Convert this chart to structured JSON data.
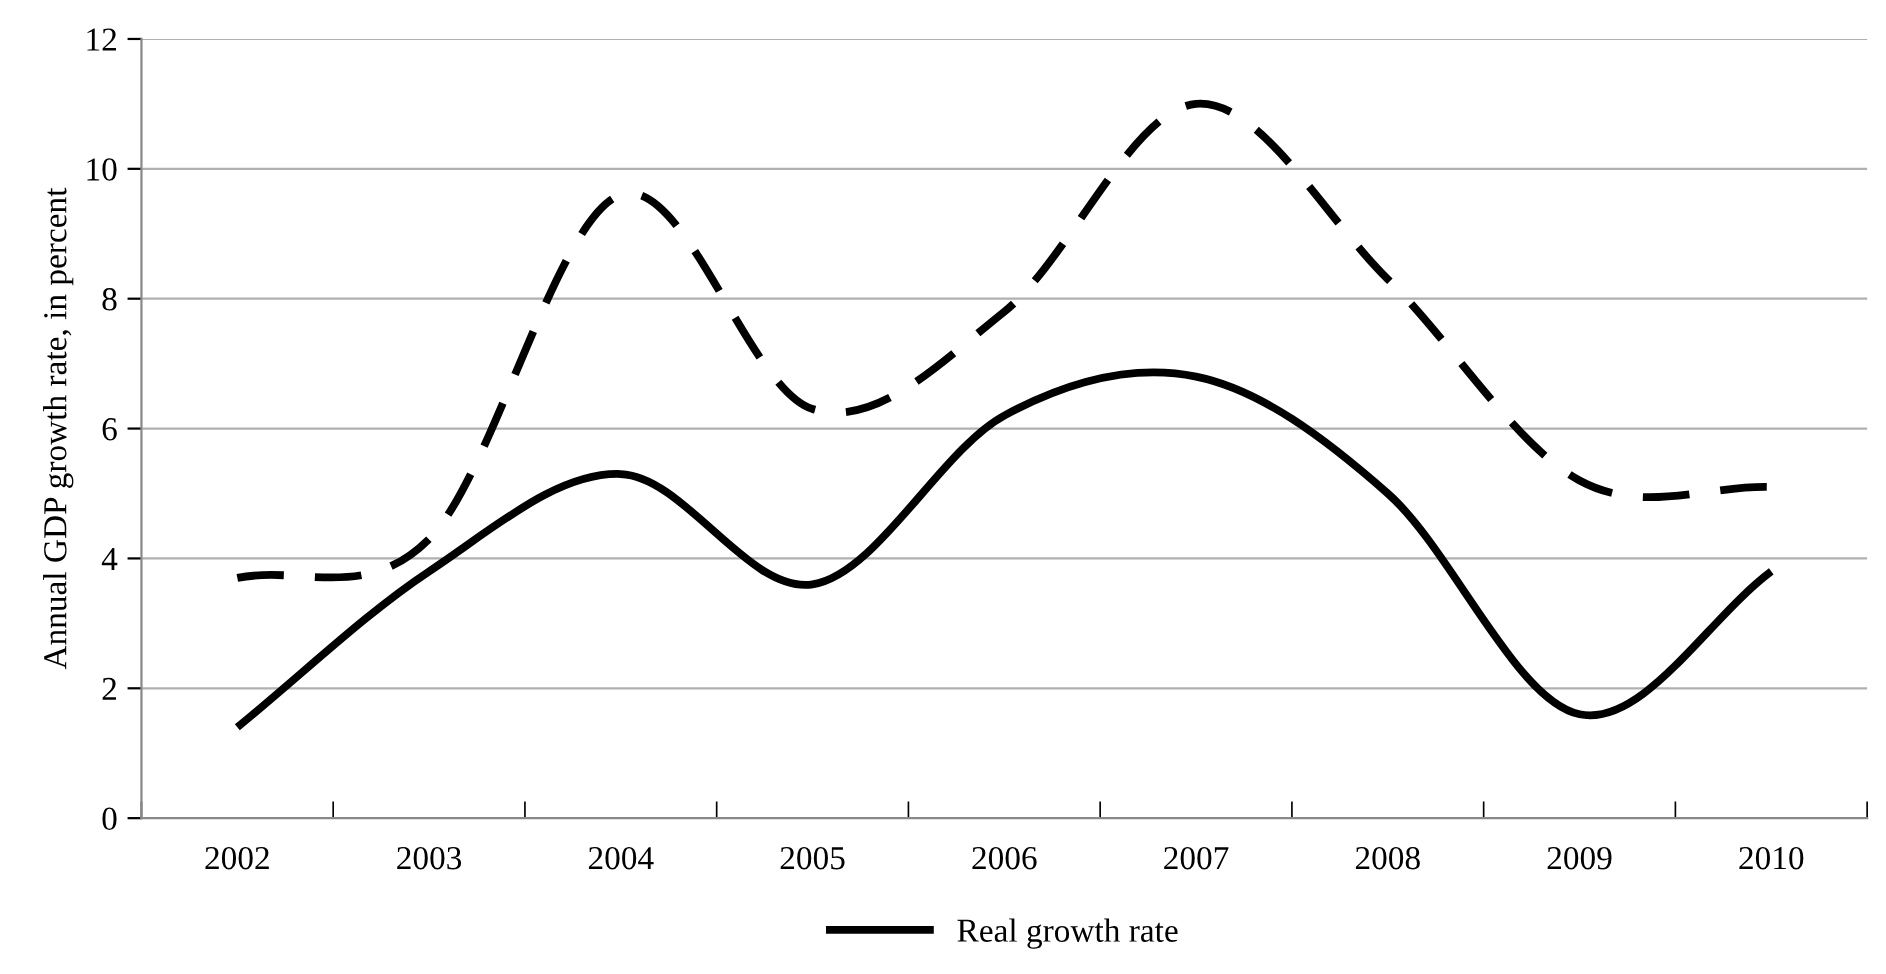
{
  "chart_data": {
    "type": "line",
    "ylabel": "Annual GDP growth rate, in percent",
    "categories": [
      "2002",
      "2003",
      "2004",
      "2005",
      "2006",
      "2007",
      "2008",
      "2009",
      "2010"
    ],
    "series": [
      {
        "color": "#000000",
        "line_style": "dashed",
        "values": [
          3.7,
          4.3,
          9.6,
          6.3,
          7.8,
          11.0,
          8.3,
          5.2,
          5.1
        ]
      },
      {
        "name": "Real growth rate",
        "color": "#000000",
        "line_style": "solid",
        "values": [
          1.4,
          3.8,
          5.3,
          3.6,
          6.2,
          6.8,
          5.0,
          1.6,
          3.8
        ]
      }
    ],
    "ylim": [
      0,
      12
    ],
    "yticks": [
      0,
      2,
      4,
      6,
      8,
      10,
      12
    ],
    "grid": "y",
    "legend": "bottom",
    "marker": "none"
  }
}
